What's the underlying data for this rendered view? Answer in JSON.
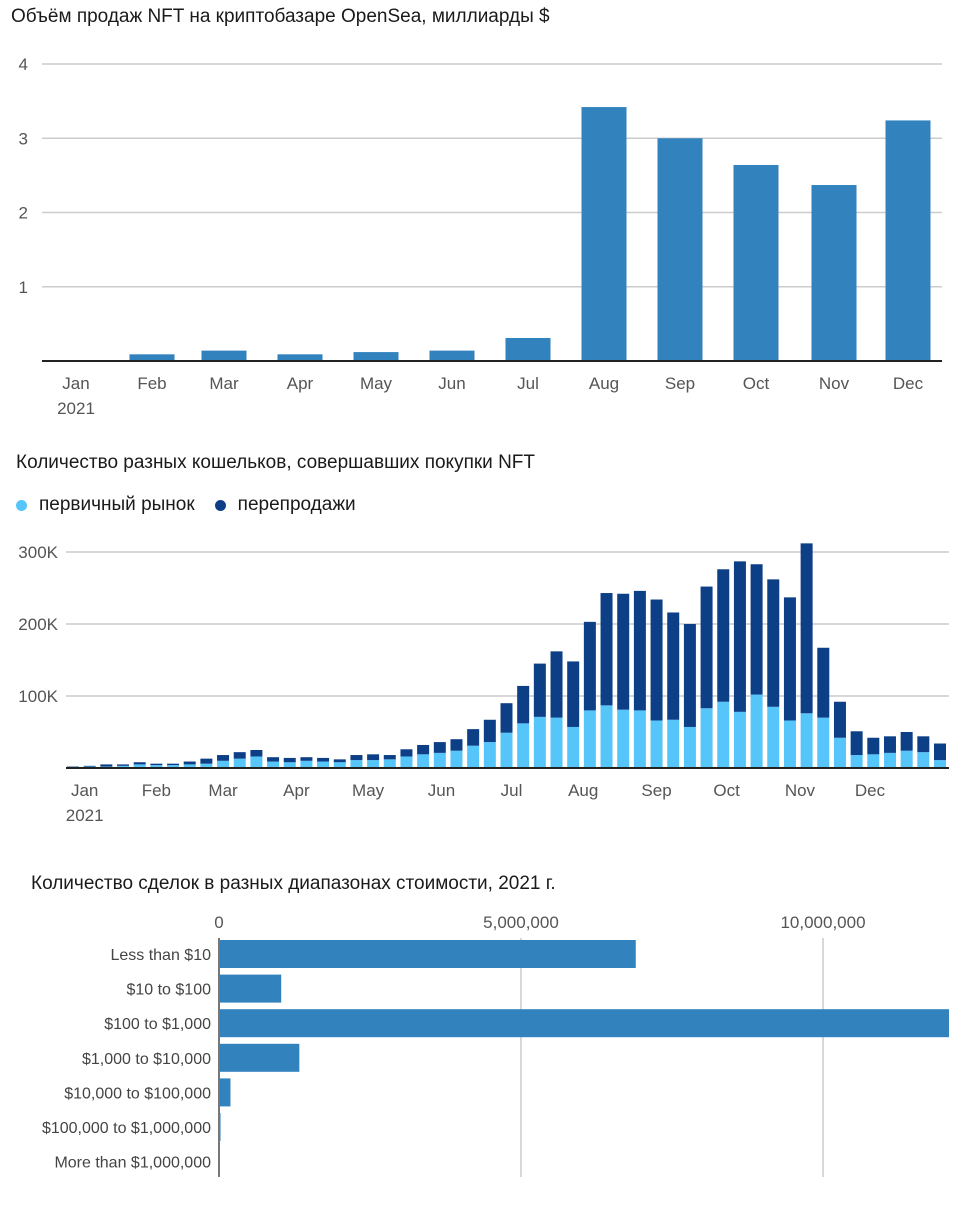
{
  "colors": {
    "bar": "#3182bd",
    "primary": "#55c5fa",
    "resale": "#0d3f86",
    "grid": "#cccccc",
    "axis": "#222222"
  },
  "chart_data": [
    {
      "type": "bar",
      "title": "Объём продаж NFT на криптобазаре OpenSea, миллиарды $",
      "categories": [
        "Jan",
        "Feb",
        "Mar",
        "Apr",
        "May",
        "Jun",
        "Jul",
        "Aug",
        "Sep",
        "Oct",
        "Nov",
        "Dec"
      ],
      "category_sublabels": [
        "2021",
        "",
        "",
        "",
        "",
        "",
        "",
        "",
        "",
        "",
        "",
        ""
      ],
      "values": [
        0.0,
        0.09,
        0.14,
        0.09,
        0.12,
        0.14,
        0.31,
        3.42,
        3.0,
        2.64,
        2.37,
        3.24
      ],
      "ylim": [
        0,
        4
      ],
      "yticks": [
        1,
        2,
        3,
        4
      ],
      "ytick_labels": [
        "1",
        "2",
        "3",
        "4"
      ],
      "xlabel": "",
      "ylabel": "",
      "grid": true
    },
    {
      "type": "bar",
      "stacked": true,
      "title": "Количество разных кошельков, совершавших покупки NFT",
      "legend": [
        {
          "name": "первичный рынок",
          "color": "#55c5fa"
        },
        {
          "name": "перепродажи",
          "color": "#0d3f86"
        }
      ],
      "legend_position": "top-left",
      "x_tick_labels": [
        "Jan",
        "Feb",
        "Mar",
        "Apr",
        "May",
        "Jun",
        "Jul",
        "Aug",
        "Sep",
        "Oct",
        "Nov",
        "Dec"
      ],
      "x_tick_sublabels": [
        "2021",
        "",
        "",
        "",
        "",
        "",
        "",
        "",
        "",
        "",
        "",
        ""
      ],
      "x_tick_week_index": [
        0.7,
        5.0,
        9.0,
        13.4,
        17.7,
        22.1,
        26.3,
        30.6,
        35.0,
        39.2,
        43.6,
        47.8
      ],
      "ylim": [
        0,
        300000
      ],
      "yticks": [
        100000,
        200000,
        300000
      ],
      "ytick_labels": [
        "100K",
        "200K",
        "300K"
      ],
      "grid": true,
      "series": [
        {
          "name": "первичный рынок",
          "values": [
            1000,
            2000,
            2000,
            3000,
            5000,
            4000,
            4000,
            5000,
            6000,
            10000,
            13000,
            16000,
            9000,
            8000,
            10000,
            9000,
            8000,
            11000,
            11000,
            12000,
            16000,
            19000,
            21000,
            24000,
            31000,
            36000,
            49000,
            62000,
            71000,
            70000,
            57000,
            80000,
            87000,
            81000,
            80000,
            66000,
            67000,
            57000,
            83000,
            92000,
            78000,
            102000,
            85000,
            66000,
            76000,
            70000,
            42000,
            18000,
            19000,
            21000,
            24000,
            22000,
            11000
          ]
        },
        {
          "name": "перепродажи",
          "values": [
            1000,
            1000,
            3000,
            2000,
            3000,
            2000,
            2000,
            4000,
            7000,
            8000,
            9000,
            9000,
            6000,
            6000,
            5000,
            5000,
            4000,
            7000,
            8000,
            6000,
            10000,
            13000,
            15000,
            16000,
            23000,
            31000,
            41000,
            52000,
            74000,
            92000,
            91000,
            123000,
            156000,
            161000,
            166000,
            168000,
            149000,
            143000,
            169000,
            184000,
            209000,
            181000,
            177000,
            171000,
            236000,
            97000,
            50000,
            33000,
            23000,
            23000,
            26000,
            22000,
            23000
          ]
        }
      ]
    },
    {
      "type": "bar",
      "orientation": "horizontal",
      "title": "Количество сделок в разных диапазонах стоимости, 2021 г.",
      "categories": [
        "Less than $10",
        "$10 to $100",
        "$100 to $1,000",
        "$1,000 to $10,000",
        "$10,000 to $100,000",
        "$100,000 to $1,000,000",
        "More than $1,000,000"
      ],
      "values": [
        6900000,
        1030000,
        12090000,
        1330000,
        190000,
        20000,
        2000
      ],
      "xlim": [
        0,
        12090000
      ],
      "xticks": [
        0,
        5000000,
        10000000
      ],
      "xtick_labels": [
        "0",
        "5,000,000",
        "10,000,000"
      ],
      "xtick_position": "top",
      "grid": true
    }
  ]
}
